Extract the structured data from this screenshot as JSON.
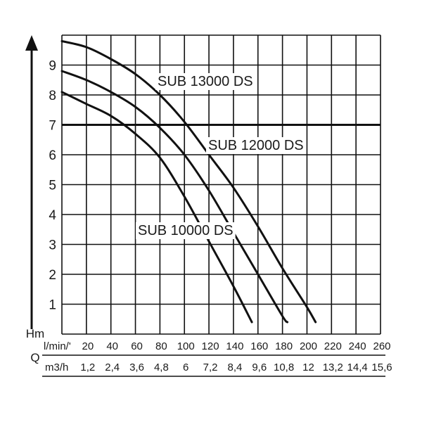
{
  "chart_data": {
    "type": "line",
    "title": "",
    "y_axis": {
      "label": "Hm",
      "ticks": [
        "1",
        "2",
        "3",
        "4",
        "5",
        "6",
        "7",
        "8",
        "9"
      ],
      "range": [
        0,
        10
      ]
    },
    "x_axis": {
      "label": "Q",
      "flow_unit_lmin": "l/min/'",
      "flow_unit_m3h": "m3/h",
      "ticks_lmin": [
        "20",
        "40",
        "60",
        "80",
        "100",
        "120",
        "140",
        "160",
        "180",
        "200",
        "220",
        "240",
        "260"
      ],
      "ticks_m3h": [
        "1,2",
        "2,4",
        "3,6",
        "4,8",
        "6",
        "7,2",
        "8,4",
        "9,6",
        "10,8",
        "12",
        "13,2",
        "14,4",
        "15,6"
      ],
      "range_lmin": [
        0,
        260
      ]
    },
    "grid": true,
    "series": [
      {
        "name": "SUB 13000 DS",
        "points": [
          [
            0,
            9.8
          ],
          [
            20,
            9.6
          ],
          [
            40,
            9.2
          ],
          [
            60,
            8.7
          ],
          [
            80,
            8.0
          ],
          [
            100,
            7.1
          ],
          [
            120,
            6.0
          ],
          [
            140,
            4.9
          ],
          [
            160,
            3.6
          ],
          [
            180,
            2.2
          ],
          [
            200,
            0.9
          ],
          [
            207,
            0.4
          ]
        ]
      },
      {
        "name": "SUB 12000 DS",
        "points": [
          [
            0,
            8.8
          ],
          [
            20,
            8.5
          ],
          [
            40,
            8.1
          ],
          [
            60,
            7.6
          ],
          [
            80,
            6.9
          ],
          [
            100,
            6.0
          ],
          [
            120,
            4.8
          ],
          [
            140,
            3.4
          ],
          [
            160,
            2.0
          ],
          [
            180,
            0.6
          ],
          [
            184,
            0.4
          ]
        ]
      },
      {
        "name": "SUB 10000 DS",
        "points": [
          [
            0,
            8.1
          ],
          [
            20,
            7.7
          ],
          [
            40,
            7.3
          ],
          [
            60,
            6.7
          ],
          [
            80,
            5.9
          ],
          [
            100,
            4.6
          ],
          [
            120,
            3.1
          ],
          [
            140,
            1.6
          ],
          [
            155,
            0.4
          ]
        ]
      }
    ]
  }
}
